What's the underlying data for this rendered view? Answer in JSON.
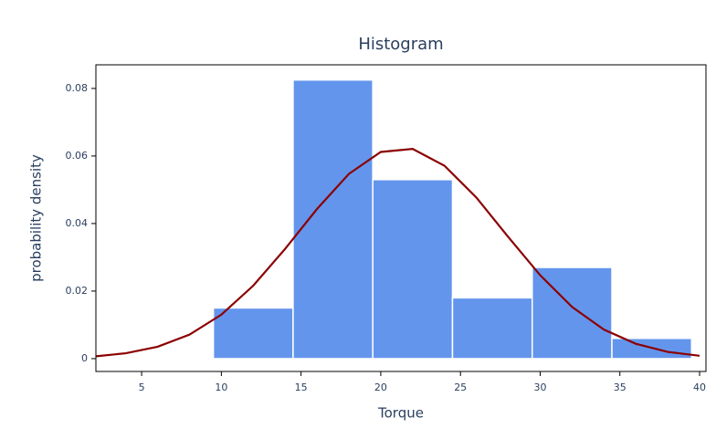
{
  "chart_data": {
    "type": "histogram",
    "title": "Histogram",
    "x_label": "Torque",
    "y_label": "probability density",
    "bins": [
      9.5,
      14.5,
      19.5,
      24.5,
      29.5,
      34.5,
      39.5
    ],
    "values": [
      0.015,
      0.0825,
      0.053,
      0.018,
      0.027,
      0.006
    ],
    "color": "#6495ed",
    "curve": {
      "color": "#8b0000",
      "x": [
        2,
        4,
        6,
        8,
        10,
        12,
        14,
        16,
        18,
        20,
        22,
        24,
        26,
        28,
        30,
        32,
        34,
        36,
        38,
        40
      ],
      "values": [
        0.00064,
        0.00158,
        0.00352,
        0.00711,
        0.01302,
        0.0216,
        0.0325,
        0.0443,
        0.0547,
        0.0612,
        0.0621,
        0.0571,
        0.0477,
        0.036,
        0.0247,
        0.0153,
        0.0086,
        0.0044,
        0.002,
        0.00085
      ]
    },
    "xlim": [
      2.13,
      40.4
    ],
    "ylim": [
      -0.0038,
      0.087
    ],
    "xticks": [
      5,
      10,
      15,
      20,
      25,
      30,
      35,
      40
    ],
    "yticks": [
      0,
      0.02,
      0.04,
      0.06,
      0.08
    ],
    "grid": false
  }
}
